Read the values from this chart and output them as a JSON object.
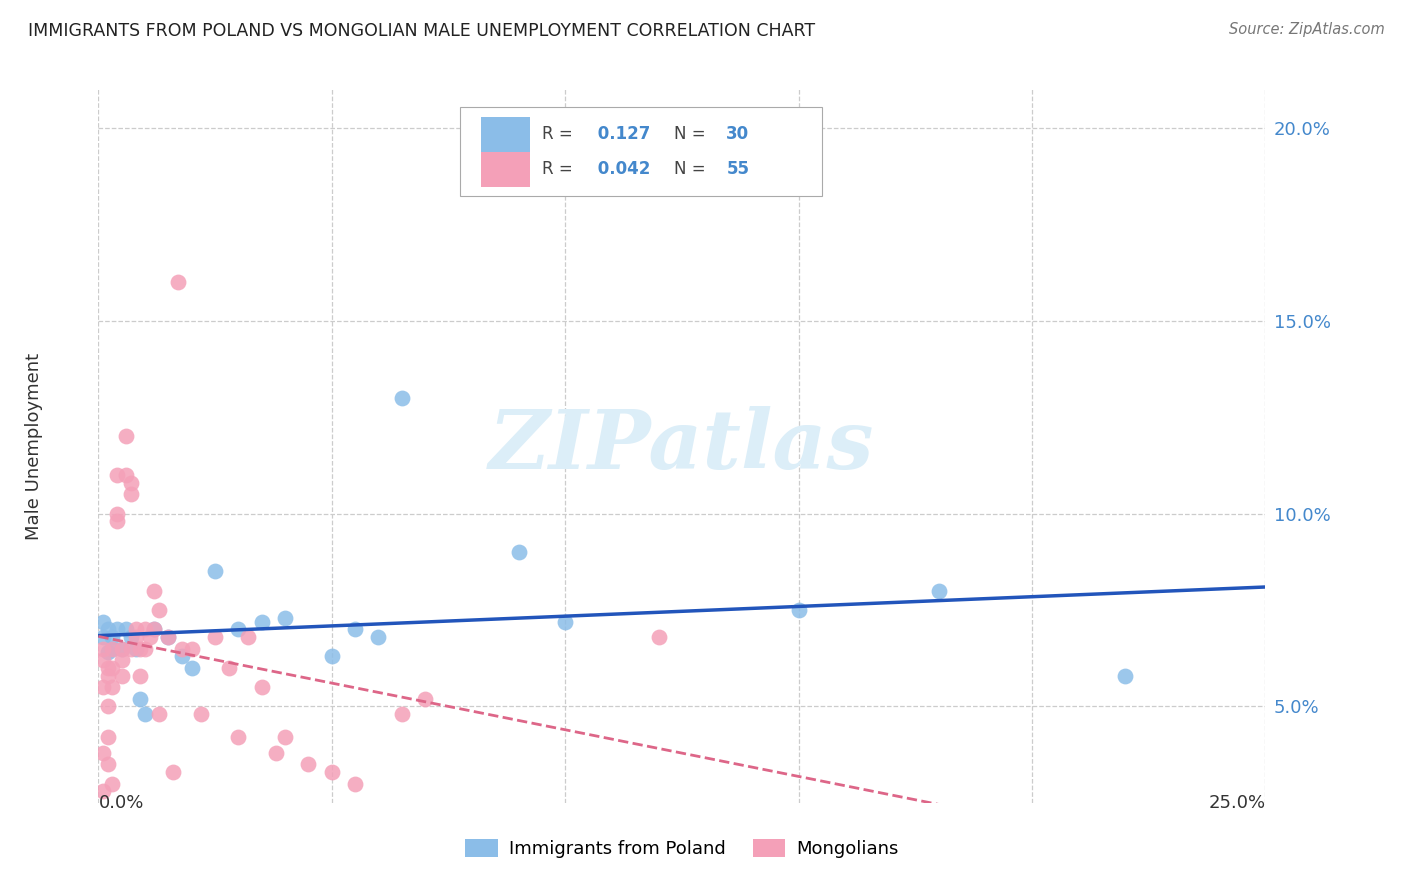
{
  "title": "IMMIGRANTS FROM POLAND VS MONGOLIAN MALE UNEMPLOYMENT CORRELATION CHART",
  "source": "Source: ZipAtlas.com",
  "ylabel": "Male Unemployment",
  "xlim": [
    0.0,
    0.25
  ],
  "ylim": [
    0.025,
    0.21
  ],
  "ytick_vals": [
    0.05,
    0.1,
    0.15,
    0.2
  ],
  "ytick_labels": [
    "5.0%",
    "10.0%",
    "15.0%",
    "20.0%"
  ],
  "poland_R": 0.127,
  "poland_N": 30,
  "mongolia_R": 0.042,
  "mongolia_N": 55,
  "poland_color": "#8bbde8",
  "mongolia_color": "#f4a0b8",
  "poland_line_color": "#2255bb",
  "mongolia_line_color": "#dd6688",
  "grid_color": "#cccccc",
  "watermark_color": "#dceef8",
  "poland_x": [
    0.001,
    0.001,
    0.002,
    0.002,
    0.003,
    0.003,
    0.004,
    0.005,
    0.006,
    0.007,
    0.008,
    0.009,
    0.01,
    0.012,
    0.015,
    0.018,
    0.02,
    0.025,
    0.03,
    0.035,
    0.04,
    0.05,
    0.055,
    0.06,
    0.065,
    0.09,
    0.1,
    0.15,
    0.18,
    0.22
  ],
  "poland_y": [
    0.068,
    0.072,
    0.064,
    0.07,
    0.065,
    0.068,
    0.07,
    0.065,
    0.07,
    0.068,
    0.065,
    0.052,
    0.048,
    0.07,
    0.068,
    0.063,
    0.06,
    0.085,
    0.07,
    0.072,
    0.073,
    0.063,
    0.07,
    0.068,
    0.13,
    0.09,
    0.072,
    0.075,
    0.08,
    0.058
  ],
  "mongolia_x": [
    0.001,
    0.001,
    0.001,
    0.001,
    0.001,
    0.002,
    0.002,
    0.002,
    0.002,
    0.002,
    0.003,
    0.003,
    0.003,
    0.003,
    0.004,
    0.004,
    0.004,
    0.005,
    0.005,
    0.005,
    0.006,
    0.006,
    0.007,
    0.007,
    0.007,
    0.008,
    0.008,
    0.009,
    0.009,
    0.01,
    0.01,
    0.011,
    0.012,
    0.012,
    0.013,
    0.013,
    0.015,
    0.016,
    0.017,
    0.018,
    0.02,
    0.022,
    0.025,
    0.028,
    0.03,
    0.032,
    0.035,
    0.038,
    0.04,
    0.045,
    0.05,
    0.055,
    0.065,
    0.07,
    0.12
  ],
  "mongolia_y": [
    0.065,
    0.062,
    0.055,
    0.038,
    0.028,
    0.06,
    0.058,
    0.05,
    0.042,
    0.035,
    0.065,
    0.06,
    0.055,
    0.03,
    0.11,
    0.1,
    0.098,
    0.065,
    0.062,
    0.058,
    0.12,
    0.11,
    0.108,
    0.105,
    0.065,
    0.07,
    0.068,
    0.065,
    0.058,
    0.07,
    0.065,
    0.068,
    0.08,
    0.07,
    0.075,
    0.048,
    0.068,
    0.033,
    0.16,
    0.065,
    0.065,
    0.048,
    0.068,
    0.06,
    0.042,
    0.068,
    0.055,
    0.038,
    0.042,
    0.035,
    0.033,
    0.03,
    0.048,
    0.052,
    0.068
  ]
}
